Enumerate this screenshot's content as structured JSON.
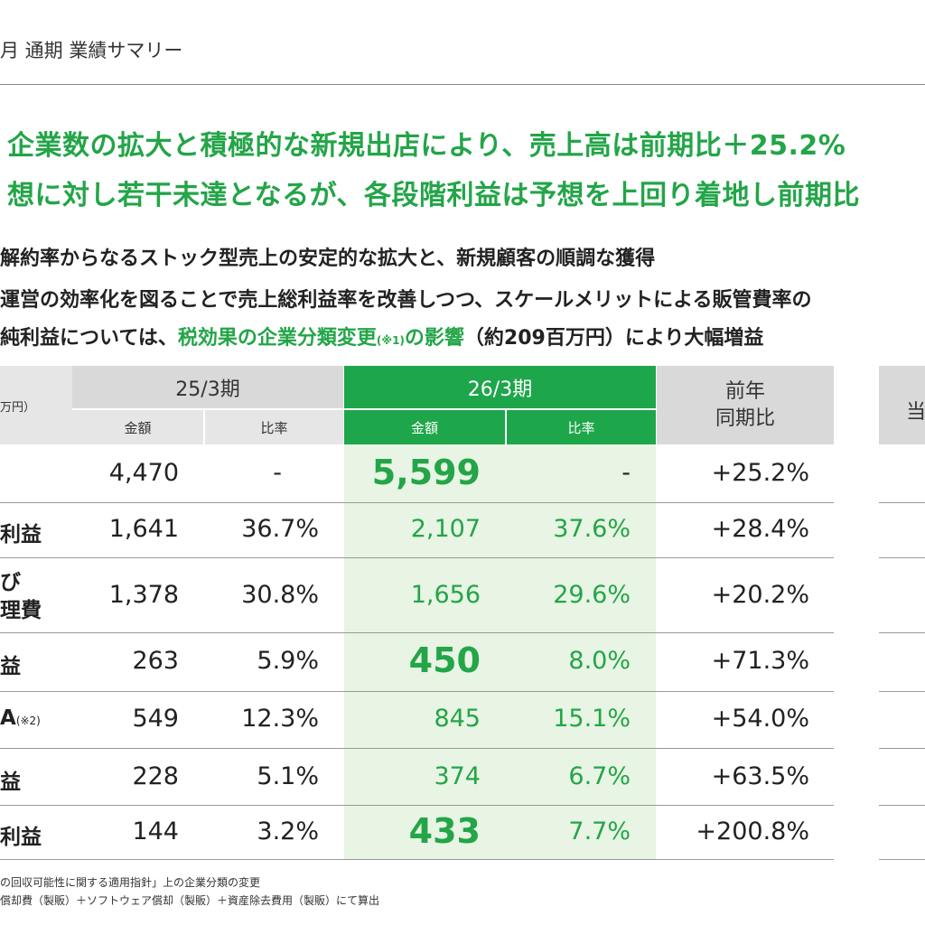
{
  "header": {
    "title": "月 通期 業績サマリー"
  },
  "headlines": [
    "企業数の拡大と積極的な新規出店により、売上高は前期比＋25.2%",
    "想に対し若干未達となるが、各段階利益は予想を上回り着地し前期比"
  ],
  "bullets": {
    "b1": "解約率からなるストック型売上の安定的な拡大と、新規顧客の順調な獲得",
    "b2": "運営の効率化を図ることで売上総利益率を改善しつつ、スケールメリットによる販管費率の",
    "b3_pre": "純利益については、",
    "b3_green": "税効果の企業分類変更",
    "b3_note": "(※1)",
    "b3_green2": "の影響",
    "b3_post": "（約209百万円）により大幅増益"
  },
  "table": {
    "unit": "万円）",
    "period_prev": "25/3期",
    "period_curr": "26/3期",
    "col_amount": "金額",
    "col_ratio": "比率",
    "col_yoy": "前年\n同期比",
    "rows": [
      {
        "label": "",
        "prev_amount": "4,470",
        "prev_ratio": "-",
        "curr_amount": "5,599",
        "curr_ratio": "-",
        "yoy": "+25.2%"
      },
      {
        "label": "利益",
        "prev_amount": "1,641",
        "prev_ratio": "36.7%",
        "curr_amount": "2,107",
        "curr_ratio": "37.6%",
        "yoy": "+28.4%"
      },
      {
        "label": "び\n理費",
        "prev_amount": "1,378",
        "prev_ratio": "30.8%",
        "curr_amount": "1,656",
        "curr_ratio": "29.6%",
        "yoy": "+20.2%"
      },
      {
        "label": "益",
        "prev_amount": "263",
        "prev_ratio": "5.9%",
        "curr_amount": "450",
        "curr_ratio": "8.0%",
        "yoy": "+71.3%"
      },
      {
        "label": "A",
        "label_note": "(※2)",
        "prev_amount": "549",
        "prev_ratio": "12.3%",
        "curr_amount": "845",
        "curr_ratio": "15.1%",
        "yoy": "+54.0%"
      },
      {
        "label": "益",
        "prev_amount": "228",
        "prev_ratio": "5.1%",
        "curr_amount": "374",
        "curr_ratio": "6.7%",
        "yoy": "+63.5%"
      },
      {
        "label": "利益",
        "prev_amount": "144",
        "prev_ratio": "3.2%",
        "curr_amount": "433",
        "curr_ratio": "7.7%",
        "yoy": "+200.8%"
      }
    ],
    "side_header": "当"
  },
  "footnotes": [
    "の回収可能性に関する適用指針」上の企業分類の変更",
    "償却費（製販）＋ソフトウェア償却（製販）＋資産除去費用（製販）にて算出"
  ],
  "colors": {
    "accent": "#23a548",
    "header_gray": "#d9d9d9",
    "highlight_bg": "#e8f4e4"
  }
}
